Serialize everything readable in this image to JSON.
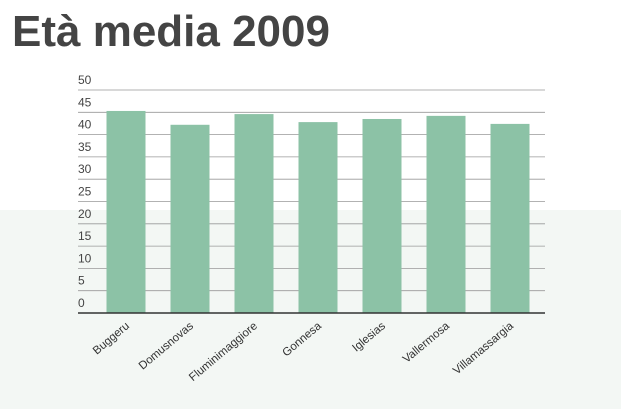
{
  "chart_data": {
    "type": "bar",
    "title": "Età media 2009",
    "categories": [
      "Buggeru",
      "Domusnovas",
      "Fluminimaggiore",
      "Gonnesa",
      "Iglesias",
      "Vallermosa",
      "Villamassargia"
    ],
    "values": [
      45.3,
      42.2,
      44.6,
      42.8,
      43.5,
      44.2,
      42.4
    ],
    "color": "#8cc2a6",
    "ylim": [
      0,
      50
    ],
    "yticks": [
      0,
      5,
      10,
      15,
      20,
      25,
      30,
      35,
      40,
      45,
      50
    ],
    "grid": true
  }
}
